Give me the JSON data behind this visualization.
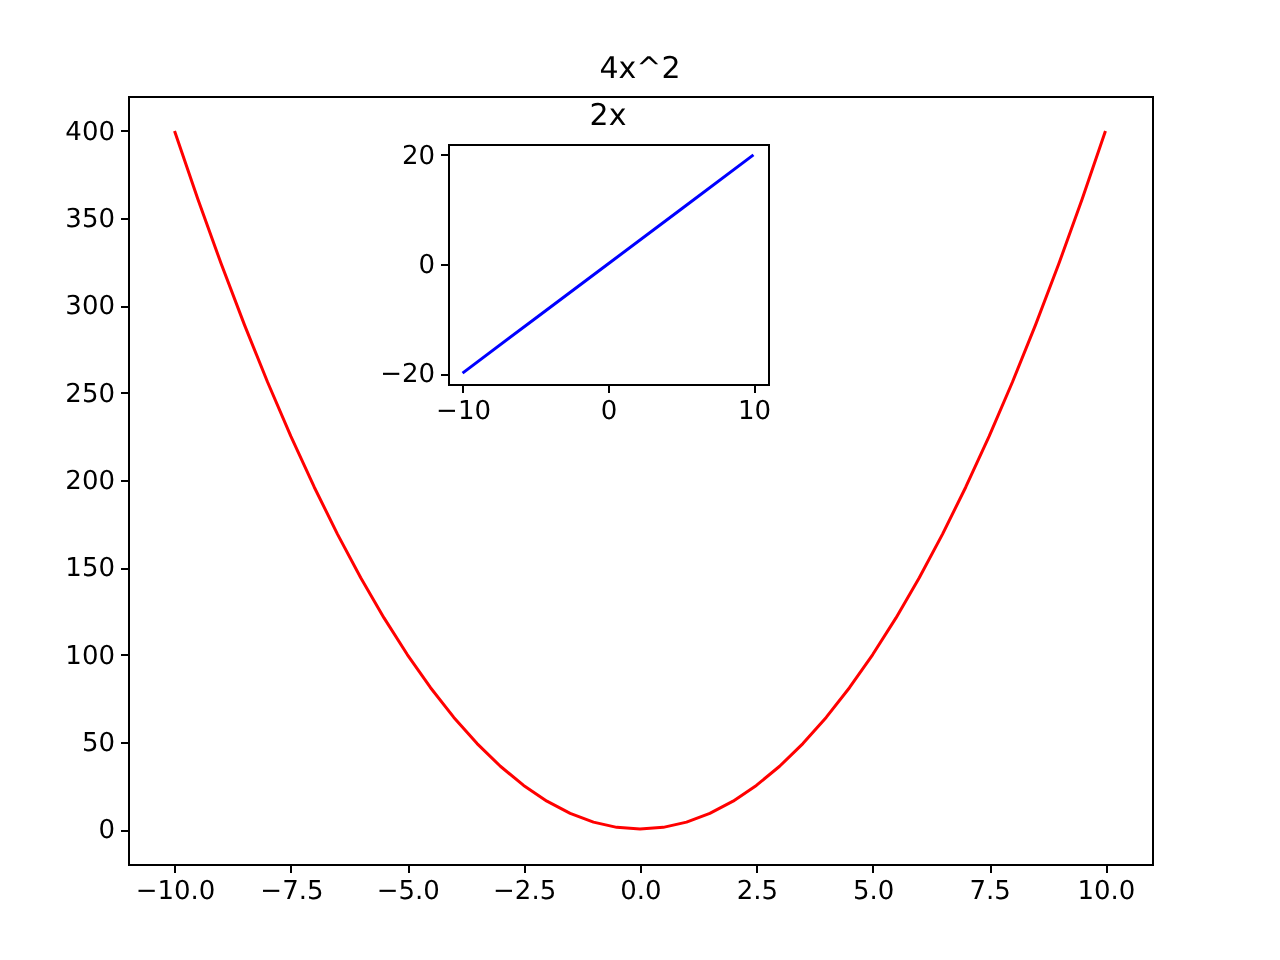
{
  "chart_data": [
    {
      "type": "line",
      "title": "4x^2",
      "x": [
        -10,
        -9.5,
        -9,
        -8.5,
        -8,
        -7.5,
        -7,
        -6.5,
        -6,
        -5.5,
        -5,
        -4.5,
        -4,
        -3.5,
        -3,
        -2.5,
        -2,
        -1.5,
        -1,
        -0.5,
        0,
        0.5,
        1,
        1.5,
        2,
        2.5,
        3,
        3.5,
        4,
        4.5,
        5,
        5.5,
        6,
        6.5,
        7,
        7.5,
        8,
        8.5,
        9,
        9.5,
        10
      ],
      "series": [
        {
          "color": "#ff0000",
          "values": [
            400,
            361,
            324,
            289,
            256,
            225,
            196,
            169,
            144,
            121,
            100,
            81,
            64,
            49,
            36,
            25,
            16,
            9,
            4,
            1,
            0,
            1,
            4,
            9,
            16,
            25,
            36,
            49,
            64,
            81,
            100,
            121,
            144,
            169,
            196,
            225,
            256,
            289,
            324,
            361,
            400
          ]
        }
      ],
      "xlim": [
        -11,
        11
      ],
      "ylim": [
        -20,
        420
      ],
      "xticks": [
        {
          "value": -10,
          "label": "−10.0"
        },
        {
          "value": -7.5,
          "label": "−7.5"
        },
        {
          "value": -5,
          "label": "−5.0"
        },
        {
          "value": -2.5,
          "label": "−2.5"
        },
        {
          "value": 0,
          "label": "0.0"
        },
        {
          "value": 2.5,
          "label": "2.5"
        },
        {
          "value": 5,
          "label": "5.0"
        },
        {
          "value": 7.5,
          "label": "7.5"
        },
        {
          "value": 10,
          "label": "10.0"
        }
      ],
      "yticks": [
        0,
        50,
        100,
        150,
        200,
        250,
        300,
        350,
        400
      ]
    },
    {
      "type": "line",
      "title": "2x",
      "x": [
        -10,
        -5,
        0,
        5,
        10
      ],
      "series": [
        {
          "color": "#0000ff",
          "values": [
            -20,
            -10,
            0,
            10,
            20
          ]
        }
      ],
      "xlim": [
        -11,
        11
      ],
      "ylim": [
        -22,
        22
      ],
      "xticks": [
        {
          "value": -10,
          "label": "−10"
        },
        0,
        10
      ],
      "yticks": [
        {
          "value": -20,
          "label": "−20"
        },
        0,
        20
      ]
    }
  ]
}
